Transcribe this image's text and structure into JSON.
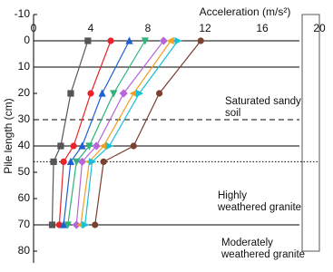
{
  "chart_data": {
    "type": "line",
    "x_label": "Acceleration (m/s²)",
    "y_label": "Pile length (cm)",
    "xlim": [
      0,
      20
    ],
    "xticks": [
      0,
      4,
      8,
      12,
      16,
      20
    ],
    "ylim": [
      -10,
      80
    ],
    "yticks": [
      -10,
      0,
      10,
      20,
      30,
      40,
      50,
      60,
      70,
      80
    ],
    "y_inverted": true,
    "y": [
      0,
      20,
      40,
      46,
      70
    ],
    "series": [
      {
        "color": "#555555",
        "marker": "square",
        "values": [
          3.8,
          2.6,
          1.9,
          1.4,
          1.3
        ]
      },
      {
        "color": "#e8232a",
        "marker": "circle",
        "values": [
          5.4,
          4.0,
          2.8,
          2.1,
          1.8
        ]
      },
      {
        "color": "#1f5fd6",
        "marker": "triangle-up",
        "values": [
          6.7,
          4.8,
          3.4,
          2.6,
          2.1
        ]
      },
      {
        "color": "#2fb37a",
        "marker": "triangle-down",
        "values": [
          7.8,
          5.6,
          3.9,
          3.0,
          2.4
        ]
      },
      {
        "color": "#b566d9",
        "marker": "diamond",
        "values": [
          9.1,
          6.3,
          4.4,
          3.4,
          3.0
        ]
      },
      {
        "color": "#f0a020",
        "marker": "triangle-left",
        "values": [
          9.6,
          7.0,
          4.9,
          3.9,
          3.3
        ]
      },
      {
        "color": "#17c0d8",
        "marker": "triangle-right",
        "values": [
          10.1,
          7.4,
          5.3,
          4.1,
          3.6
        ]
      },
      {
        "color": "#7a4030",
        "marker": "circle",
        "values": [
          11.7,
          8.8,
          7.0,
          4.9,
          4.3
        ]
      }
    ],
    "hlines": [
      {
        "value": 0,
        "style": "solid"
      },
      {
        "value": 10,
        "style": "solid"
      },
      {
        "value": 30,
        "style": "dashed"
      },
      {
        "value": 40,
        "style": "solid"
      },
      {
        "value": 46,
        "style": "dotted"
      },
      {
        "value": 70,
        "style": "solid"
      }
    ],
    "annotations": [
      [
        "Saturated sandy",
        "soil"
      ],
      [
        "Highly",
        "weathered granite"
      ],
      [
        "Moderately",
        "weathered granite"
      ]
    ]
  }
}
